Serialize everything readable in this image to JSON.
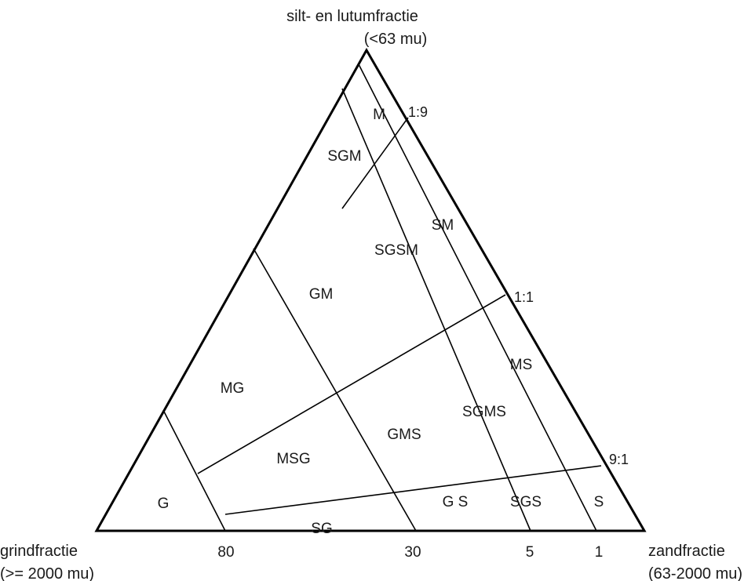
{
  "vertices": {
    "top": {
      "name": "silt- en lutumfractie",
      "range": "(<63 mu)"
    },
    "bottom_left": {
      "name": "grindfractie",
      "range": "(>= 2000 mu)"
    },
    "bottom_right": {
      "name": "zandfractie",
      "range": "(63-2000 mu)"
    }
  },
  "ratio_labels": [
    "1:9",
    "1:1",
    "9:1"
  ],
  "gravel_ticks": [
    "80",
    "30",
    "5",
    "1"
  ],
  "regions": {
    "M": "M",
    "SGM": "SGM",
    "SM": "SM",
    "SGSM": "SGSM",
    "GM": "GM",
    "MS": "MS",
    "MG": "MG",
    "SGMS": "SGMS",
    "GMS": "GMS",
    "MSG": "MSG",
    "G": "G",
    "G_S": "G S",
    "SGS": "SGS",
    "S": "S",
    "SG": "SG"
  },
  "colors": {
    "line": "#000000",
    "text": "#1a1a1a",
    "background": "#ffffff"
  }
}
